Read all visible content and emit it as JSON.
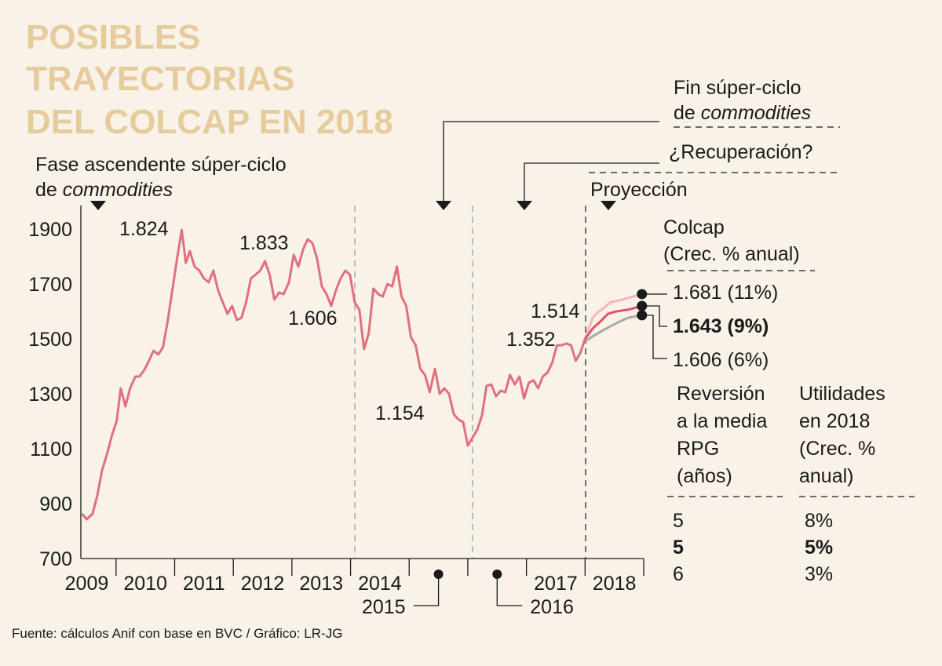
{
  "chart_data": {
    "type": "line",
    "title_lines": [
      "POSIBLES",
      "TRAYECTORIAS",
      "DEL COLCAP EN 2018"
    ],
    "phases": [
      {
        "line1": "Fase ascendente súper-ciclo",
        "line2": "de",
        "line2_em": "commodities"
      },
      {
        "line1": "Fin súper-ciclo",
        "line2": "de",
        "line2_em": "commodities"
      },
      {
        "line1": "¿Recuperación?"
      },
      {
        "line1": "Proyección"
      }
    ],
    "xlim": [
      2009.4,
      2019
    ],
    "xticks": [
      2010,
      2011,
      2012,
      2013,
      2014,
      2015,
      2016,
      2017,
      2018,
      2019
    ],
    "year_labels": [
      "2009",
      "2010",
      "2011",
      "2012",
      "2013",
      "2014",
      "2015",
      "2016",
      "2017",
      "2018"
    ],
    "ylim": [
      700,
      1900
    ],
    "yticks": [
      700,
      900,
      1100,
      1300,
      1500,
      1700,
      1900
    ],
    "x": [
      2009.42,
      2009.5,
      2009.6,
      2009.68,
      2009.76,
      2009.85,
      2009.93,
      2010.01,
      2010.08,
      2010.16,
      2010.24,
      2010.33,
      2010.4,
      2010.48,
      2010.56,
      2010.64,
      2010.72,
      2010.8,
      2010.88,
      2010.96,
      2011.04,
      2011.12,
      2011.19,
      2011.26,
      2011.34,
      2011.42,
      2011.5,
      2011.58,
      2011.66,
      2011.74,
      2011.82,
      2011.9,
      2011.98,
      2012.06,
      2012.14,
      2012.22,
      2012.3,
      2012.38,
      2012.46,
      2012.54,
      2012.62,
      2012.7,
      2012.78,
      2012.86,
      2012.95,
      2013.03,
      2013.11,
      2013.19,
      2013.27,
      2013.35,
      2013.43,
      2013.51,
      2013.59,
      2013.67,
      2013.75,
      2013.83,
      2013.91,
      2013.99,
      2014.07,
      2014.15,
      2014.23,
      2014.31,
      2014.39,
      2014.47,
      2014.55,
      2014.63,
      2014.71,
      2014.79,
      2014.87,
      2014.95,
      2015.03,
      2015.11,
      2015.19,
      2015.27,
      2015.35,
      2015.44,
      2015.52,
      2015.6,
      2015.68,
      2015.76,
      2015.84,
      2015.92,
      2016.0,
      2016.08,
      2016.16,
      2016.24,
      2016.32,
      2016.4,
      2016.48,
      2016.56,
      2016.64,
      2016.72,
      2016.8,
      2016.88,
      2016.96,
      2017.04,
      2017.12,
      2017.2,
      2017.28,
      2017.36,
      2017.44,
      2017.52,
      2017.6,
      2017.68,
      2017.76,
      2017.84,
      2017.92,
      2018.0
    ],
    "series": [
      {
        "color": "#e0707e",
        "values": [
          863,
          843,
          863,
          929,
          1020,
          1083,
          1149,
          1200,
          1320,
          1254,
          1320,
          1363,
          1363,
          1386,
          1420,
          1457,
          1443,
          1469,
          1563,
          1677,
          1791,
          1897,
          1777,
          1820,
          1763,
          1749,
          1720,
          1706,
          1749,
          1677,
          1634,
          1591,
          1620,
          1569,
          1577,
          1634,
          1720,
          1734,
          1749,
          1783,
          1734,
          1643,
          1669,
          1663,
          1706,
          1806,
          1763,
          1826,
          1863,
          1849,
          1791,
          1691,
          1663,
          1620,
          1677,
          1720,
          1749,
          1734,
          1634,
          1606,
          1463,
          1520,
          1683,
          1663,
          1654,
          1700,
          1691,
          1763,
          1654,
          1620,
          1506,
          1477,
          1391,
          1369,
          1306,
          1391,
          1300,
          1320,
          1300,
          1226,
          1206,
          1197,
          1111,
          1140,
          1169,
          1220,
          1329,
          1334,
          1291,
          1311,
          1306,
          1369,
          1334,
          1363,
          1283,
          1340,
          1349,
          1320,
          1363,
          1377,
          1414,
          1477,
          1477,
          1483,
          1477,
          1420,
          1449,
          1500
        ]
      }
    ],
    "annotations": [
      "1.824",
      "1.833",
      "1.606",
      "1.154",
      "1.514",
      "1.352"
    ],
    "panel_title": [
      "Colcap",
      "(Crec. % anual)"
    ],
    "projections": [
      {
        "name": "1.681 (11%)",
        "color": "#f4b5bd",
        "x": [
          2018.0,
          2018.13,
          2018.22,
          2018.33,
          2018.43,
          2018.59,
          2018.73,
          2018.97
        ],
        "values": [
          1500,
          1577,
          1597,
          1614,
          1634,
          1640,
          1649,
          1663
        ],
        "rpg": 5,
        "growth": "8%"
      },
      {
        "name": "1.643 (9%)",
        "color": "#e05468",
        "x": [
          2018.0,
          2018.14,
          2018.26,
          2018.39,
          2018.53,
          2018.73,
          2018.97
        ],
        "values": [
          1500,
          1540,
          1563,
          1591,
          1600,
          1606,
          1620
        ],
        "rpg": 5,
        "growth": "5%"
      },
      {
        "name": "1.606 (6%)",
        "color": "#aaaaaa",
        "x": [
          2018.0,
          2018.14,
          2018.33,
          2018.53,
          2018.73,
          2018.97
        ],
        "values": [
          1491,
          1511,
          1534,
          1557,
          1577,
          1586
        ],
        "rpg": 6,
        "growth": "3%"
      }
    ],
    "table_headers": [
      [
        "Reversión",
        "a la media",
        "RPG",
        "(años)"
      ],
      [
        "Utilidades",
        "en 2018",
        "(Crec. %",
        "anual)"
      ]
    ],
    "source": "Fuente: cálculos Anif con base en BVC / Gráfico: LR-JG"
  }
}
